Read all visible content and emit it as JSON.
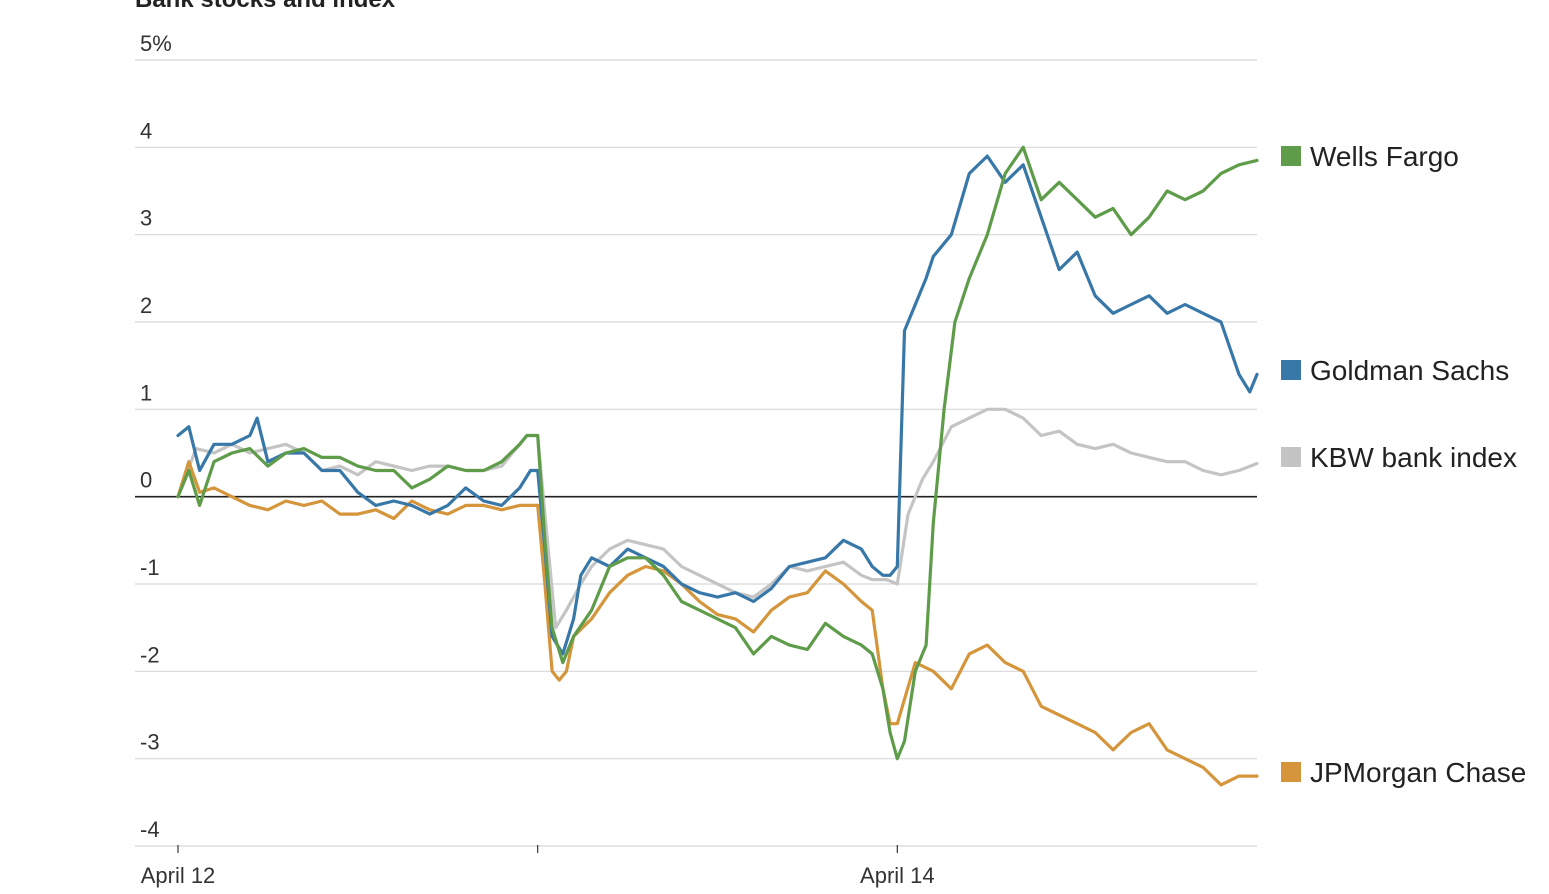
{
  "chart_data": {
    "type": "line",
    "title": "Bank stocks and index",
    "ylim": [
      -4,
      5
    ],
    "yticks": [
      {
        "value": 5,
        "label": "5%"
      },
      {
        "value": 4,
        "label": "4"
      },
      {
        "value": 3,
        "label": "3"
      },
      {
        "value": 2,
        "label": "2"
      },
      {
        "value": 1,
        "label": "1"
      },
      {
        "value": 0,
        "label": "0"
      },
      {
        "value": -1,
        "label": "-1"
      },
      {
        "value": -2,
        "label": "-2"
      },
      {
        "value": -3,
        "label": "-3"
      },
      {
        "value": -4,
        "label": "-4"
      }
    ],
    "xlim": [
      0,
      3
    ],
    "xticks": [
      {
        "value": 0,
        "label": "April 12"
      },
      {
        "value": 1,
        "label": ""
      },
      {
        "value": 2,
        "label": "April 14"
      }
    ],
    "grid": true,
    "legend_position": "right",
    "series": [
      {
        "name": "KBW bank index",
        "color": "#c4c4c4",
        "points": [
          [
            0.0,
            0.0
          ],
          [
            0.05,
            0.55
          ],
          [
            0.1,
            0.5
          ],
          [
            0.15,
            0.6
          ],
          [
            0.2,
            0.5
          ],
          [
            0.25,
            0.55
          ],
          [
            0.3,
            0.6
          ],
          [
            0.35,
            0.5
          ],
          [
            0.4,
            0.3
          ],
          [
            0.45,
            0.35
          ],
          [
            0.5,
            0.25
          ],
          [
            0.55,
            0.4
          ],
          [
            0.6,
            0.35
          ],
          [
            0.65,
            0.3
          ],
          [
            0.7,
            0.35
          ],
          [
            0.75,
            0.35
          ],
          [
            0.8,
            0.3
          ],
          [
            0.85,
            0.3
          ],
          [
            0.9,
            0.35
          ],
          [
            0.95,
            0.6
          ],
          [
            0.97,
            0.7
          ],
          [
            1.0,
            0.7
          ],
          [
            1.02,
            -0.2
          ],
          [
            1.05,
            -1.5
          ],
          [
            1.08,
            -1.3
          ],
          [
            1.12,
            -1.0
          ],
          [
            1.15,
            -0.8
          ],
          [
            1.2,
            -0.6
          ],
          [
            1.25,
            -0.5
          ],
          [
            1.3,
            -0.55
          ],
          [
            1.35,
            -0.6
          ],
          [
            1.4,
            -0.8
          ],
          [
            1.45,
            -0.9
          ],
          [
            1.5,
            -1.0
          ],
          [
            1.55,
            -1.1
          ],
          [
            1.6,
            -1.15
          ],
          [
            1.65,
            -1.0
          ],
          [
            1.7,
            -0.8
          ],
          [
            1.75,
            -0.85
          ],
          [
            1.8,
            -0.8
          ],
          [
            1.85,
            -0.75
          ],
          [
            1.9,
            -0.9
          ],
          [
            1.93,
            -0.95
          ],
          [
            1.97,
            -0.95
          ],
          [
            2.0,
            -1.0
          ],
          [
            2.03,
            -0.2
          ],
          [
            2.07,
            0.2
          ],
          [
            2.1,
            0.4
          ],
          [
            2.15,
            0.8
          ],
          [
            2.2,
            0.9
          ],
          [
            2.25,
            1.0
          ],
          [
            2.3,
            1.0
          ],
          [
            2.35,
            0.9
          ],
          [
            2.4,
            0.7
          ],
          [
            2.45,
            0.75
          ],
          [
            2.5,
            0.6
          ],
          [
            2.55,
            0.55
          ],
          [
            2.6,
            0.6
          ],
          [
            2.65,
            0.5
          ],
          [
            2.7,
            0.45
          ],
          [
            2.75,
            0.4
          ],
          [
            2.8,
            0.4
          ],
          [
            2.85,
            0.3
          ],
          [
            2.9,
            0.25
          ],
          [
            2.95,
            0.3
          ],
          [
            3.0,
            0.38
          ]
        ]
      },
      {
        "name": "JPMorgan Chase",
        "color": "#d4953b",
        "points": [
          [
            0.0,
            0.0
          ],
          [
            0.03,
            0.4
          ],
          [
            0.06,
            0.05
          ],
          [
            0.1,
            0.1
          ],
          [
            0.15,
            0.0
          ],
          [
            0.2,
            -0.1
          ],
          [
            0.25,
            -0.15
          ],
          [
            0.3,
            -0.05
          ],
          [
            0.35,
            -0.1
          ],
          [
            0.4,
            -0.05
          ],
          [
            0.45,
            -0.2
          ],
          [
            0.5,
            -0.2
          ],
          [
            0.55,
            -0.15
          ],
          [
            0.6,
            -0.25
          ],
          [
            0.65,
            -0.05
          ],
          [
            0.7,
            -0.15
          ],
          [
            0.75,
            -0.2
          ],
          [
            0.8,
            -0.1
          ],
          [
            0.85,
            -0.1
          ],
          [
            0.9,
            -0.15
          ],
          [
            0.95,
            -0.1
          ],
          [
            1.0,
            -0.1
          ],
          [
            1.02,
            -1.0
          ],
          [
            1.04,
            -2.0
          ],
          [
            1.06,
            -2.1
          ],
          [
            1.08,
            -2.0
          ],
          [
            1.1,
            -1.6
          ],
          [
            1.15,
            -1.4
          ],
          [
            1.2,
            -1.1
          ],
          [
            1.25,
            -0.9
          ],
          [
            1.3,
            -0.8
          ],
          [
            1.35,
            -0.85
          ],
          [
            1.4,
            -1.0
          ],
          [
            1.45,
            -1.2
          ],
          [
            1.5,
            -1.35
          ],
          [
            1.55,
            -1.4
          ],
          [
            1.6,
            -1.55
          ],
          [
            1.65,
            -1.3
          ],
          [
            1.7,
            -1.15
          ],
          [
            1.75,
            -1.1
          ],
          [
            1.8,
            -0.85
          ],
          [
            1.85,
            -1.0
          ],
          [
            1.9,
            -1.2
          ],
          [
            1.93,
            -1.3
          ],
          [
            1.96,
            -2.2
          ],
          [
            1.98,
            -2.6
          ],
          [
            2.0,
            -2.6
          ],
          [
            2.05,
            -1.9
          ],
          [
            2.1,
            -2.0
          ],
          [
            2.15,
            -2.2
          ],
          [
            2.2,
            -1.8
          ],
          [
            2.25,
            -1.7
          ],
          [
            2.3,
            -1.9
          ],
          [
            2.35,
            -2.0
          ],
          [
            2.4,
            -2.4
          ],
          [
            2.45,
            -2.5
          ],
          [
            2.5,
            -2.6
          ],
          [
            2.55,
            -2.7
          ],
          [
            2.6,
            -2.9
          ],
          [
            2.65,
            -2.7
          ],
          [
            2.7,
            -2.6
          ],
          [
            2.75,
            -2.9
          ],
          [
            2.8,
            -3.0
          ],
          [
            2.85,
            -3.1
          ],
          [
            2.9,
            -3.3
          ],
          [
            2.95,
            -3.2
          ],
          [
            3.0,
            -3.2
          ]
        ]
      },
      {
        "name": "Goldman Sachs",
        "color": "#3878a8",
        "points": [
          [
            0.0,
            0.7
          ],
          [
            0.03,
            0.8
          ],
          [
            0.06,
            0.3
          ],
          [
            0.1,
            0.6
          ],
          [
            0.15,
            0.6
          ],
          [
            0.2,
            0.7
          ],
          [
            0.22,
            0.9
          ],
          [
            0.25,
            0.4
          ],
          [
            0.3,
            0.5
          ],
          [
            0.35,
            0.5
          ],
          [
            0.4,
            0.3
          ],
          [
            0.45,
            0.3
          ],
          [
            0.5,
            0.05
          ],
          [
            0.55,
            -0.1
          ],
          [
            0.6,
            -0.05
          ],
          [
            0.65,
            -0.1
          ],
          [
            0.7,
            -0.2
          ],
          [
            0.75,
            -0.1
          ],
          [
            0.8,
            0.1
          ],
          [
            0.85,
            -0.05
          ],
          [
            0.9,
            -0.1
          ],
          [
            0.95,
            0.1
          ],
          [
            0.98,
            0.3
          ],
          [
            1.0,
            0.3
          ],
          [
            1.02,
            -0.6
          ],
          [
            1.04,
            -1.6
          ],
          [
            1.07,
            -1.8
          ],
          [
            1.1,
            -1.4
          ],
          [
            1.12,
            -0.9
          ],
          [
            1.15,
            -0.7
          ],
          [
            1.2,
            -0.8
          ],
          [
            1.25,
            -0.6
          ],
          [
            1.3,
            -0.7
          ],
          [
            1.35,
            -0.8
          ],
          [
            1.4,
            -1.0
          ],
          [
            1.45,
            -1.1
          ],
          [
            1.5,
            -1.15
          ],
          [
            1.55,
            -1.1
          ],
          [
            1.6,
            -1.2
          ],
          [
            1.65,
            -1.05
          ],
          [
            1.7,
            -0.8
          ],
          [
            1.75,
            -0.75
          ],
          [
            1.8,
            -0.7
          ],
          [
            1.85,
            -0.5
          ],
          [
            1.9,
            -0.6
          ],
          [
            1.93,
            -0.8
          ],
          [
            1.96,
            -0.9
          ],
          [
            1.98,
            -0.9
          ],
          [
            2.0,
            -0.8
          ],
          [
            2.02,
            1.9
          ],
          [
            2.05,
            2.2
          ],
          [
            2.08,
            2.5
          ],
          [
            2.1,
            2.75
          ],
          [
            2.15,
            3.0
          ],
          [
            2.2,
            3.7
          ],
          [
            2.25,
            3.9
          ],
          [
            2.3,
            3.6
          ],
          [
            2.35,
            3.8
          ],
          [
            2.4,
            3.2
          ],
          [
            2.45,
            2.6
          ],
          [
            2.5,
            2.8
          ],
          [
            2.55,
            2.3
          ],
          [
            2.6,
            2.1
          ],
          [
            2.65,
            2.2
          ],
          [
            2.7,
            2.3
          ],
          [
            2.75,
            2.1
          ],
          [
            2.8,
            2.2
          ],
          [
            2.85,
            2.1
          ],
          [
            2.9,
            2.0
          ],
          [
            2.95,
            1.4
          ],
          [
            2.98,
            1.2
          ],
          [
            3.0,
            1.4
          ]
        ]
      },
      {
        "name": "Wells Fargo",
        "color": "#5f9c4a",
        "points": [
          [
            0.0,
            0.0
          ],
          [
            0.03,
            0.3
          ],
          [
            0.06,
            -0.1
          ],
          [
            0.1,
            0.4
          ],
          [
            0.15,
            0.5
          ],
          [
            0.2,
            0.55
          ],
          [
            0.25,
            0.35
          ],
          [
            0.3,
            0.5
          ],
          [
            0.35,
            0.55
          ],
          [
            0.4,
            0.45
          ],
          [
            0.45,
            0.45
          ],
          [
            0.5,
            0.35
          ],
          [
            0.55,
            0.3
          ],
          [
            0.6,
            0.3
          ],
          [
            0.65,
            0.1
          ],
          [
            0.7,
            0.2
          ],
          [
            0.75,
            0.35
          ],
          [
            0.8,
            0.3
          ],
          [
            0.85,
            0.3
          ],
          [
            0.9,
            0.4
          ],
          [
            0.95,
            0.6
          ],
          [
            0.97,
            0.7
          ],
          [
            1.0,
            0.7
          ],
          [
            1.02,
            -0.5
          ],
          [
            1.04,
            -1.5
          ],
          [
            1.07,
            -1.9
          ],
          [
            1.1,
            -1.6
          ],
          [
            1.15,
            -1.3
          ],
          [
            1.2,
            -0.8
          ],
          [
            1.25,
            -0.7
          ],
          [
            1.3,
            -0.7
          ],
          [
            1.35,
            -0.9
          ],
          [
            1.4,
            -1.2
          ],
          [
            1.45,
            -1.3
          ],
          [
            1.5,
            -1.4
          ],
          [
            1.55,
            -1.5
          ],
          [
            1.6,
            -1.8
          ],
          [
            1.65,
            -1.6
          ],
          [
            1.7,
            -1.7
          ],
          [
            1.75,
            -1.75
          ],
          [
            1.8,
            -1.45
          ],
          [
            1.85,
            -1.6
          ],
          [
            1.9,
            -1.7
          ],
          [
            1.93,
            -1.8
          ],
          [
            1.96,
            -2.2
          ],
          [
            1.98,
            -2.7
          ],
          [
            2.0,
            -3.0
          ],
          [
            2.02,
            -2.8
          ],
          [
            2.05,
            -2.0
          ],
          [
            2.08,
            -1.7
          ],
          [
            2.1,
            -0.3
          ],
          [
            2.13,
            1.0
          ],
          [
            2.16,
            2.0
          ],
          [
            2.2,
            2.5
          ],
          [
            2.25,
            3.0
          ],
          [
            2.3,
            3.7
          ],
          [
            2.35,
            4.0
          ],
          [
            2.4,
            3.4
          ],
          [
            2.45,
            3.6
          ],
          [
            2.5,
            3.4
          ],
          [
            2.55,
            3.2
          ],
          [
            2.6,
            3.3
          ],
          [
            2.65,
            3.0
          ],
          [
            2.7,
            3.2
          ],
          [
            2.75,
            3.5
          ],
          [
            2.8,
            3.4
          ],
          [
            2.85,
            3.5
          ],
          [
            2.9,
            3.7
          ],
          [
            2.95,
            3.8
          ],
          [
            3.0,
            3.85
          ]
        ]
      }
    ]
  }
}
